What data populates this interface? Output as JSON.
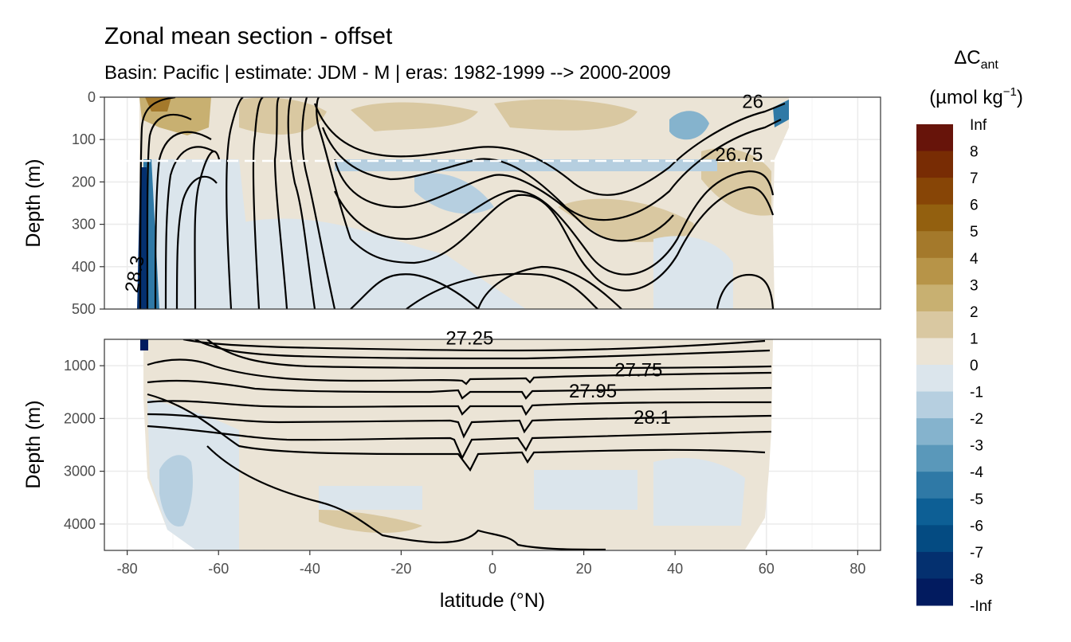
{
  "chart_data": {
    "type": "heatmap",
    "title": "Zonal mean section - offset",
    "subtitle": "Basin: Pacific | estimate: JDM - M | eras: 1982-1999 --> 2000-2009",
    "xlabel": "latitude (°N)",
    "ylabel": "Depth (m)",
    "x_ticks": [
      -80,
      -60,
      -40,
      -20,
      0,
      20,
      40,
      60,
      80
    ],
    "xlim": [
      -85,
      85
    ],
    "panels": [
      {
        "name": "upper",
        "ylim": [
          500,
          0
        ],
        "y_ticks": [
          0,
          100,
          200,
          300,
          400,
          500
        ],
        "mixed_layer_line_depth": 150
      },
      {
        "name": "lower",
        "ylim": [
          4500,
          500
        ],
        "y_ticks": [
          1000,
          2000,
          3000,
          4000
        ]
      }
    ],
    "legend": {
      "title_main": "ΔC",
      "title_sub": "ant",
      "unit_main": "(µmol kg",
      "unit_sup": "−1",
      "unit_end": ")",
      "placement": "right",
      "labels": [
        "Inf",
        "8",
        "7",
        "6",
        "5",
        "4",
        "3",
        "2",
        "1",
        "0",
        "-1",
        "-2",
        "-3",
        "-4",
        "-5",
        "-6",
        "-7",
        "-8",
        "-Inf"
      ],
      "colors": [
        "#67140a",
        "#782c04",
        "#874506",
        "#93600f",
        "#a4792b",
        "#b79448",
        "#c8b071",
        "#d9c8a1",
        "#ebe4d6",
        "#dbe5ec",
        "#b6cfe0",
        "#85b3cd",
        "#5a98ba",
        "#2f79a6",
        "#0d5f95",
        "#044b82",
        "#04306f",
        "#021b5f"
      ]
    },
    "contours": [
      {
        "level": "26",
        "panel": "upper",
        "lat": 57,
        "depth": 25
      },
      {
        "level": "26.75",
        "panel": "upper",
        "lat": 54,
        "depth": 150
      },
      {
        "level": "28.3",
        "panel": "upper",
        "lat": -77,
        "depth": 420,
        "rotated": true
      },
      {
        "level": "27.25",
        "panel": "lower",
        "lat": -5,
        "depth": 600
      },
      {
        "level": "27.75",
        "panel": "lower",
        "lat": 32,
        "depth": 1200
      },
      {
        "level": "27.95",
        "panel": "lower",
        "lat": 22,
        "depth": 1600
      },
      {
        "level": "28.1",
        "panel": "lower",
        "lat": 35,
        "depth": 2100
      }
    ],
    "section_extent": {
      "lat_min": -78,
      "lat_max": 64
    }
  }
}
